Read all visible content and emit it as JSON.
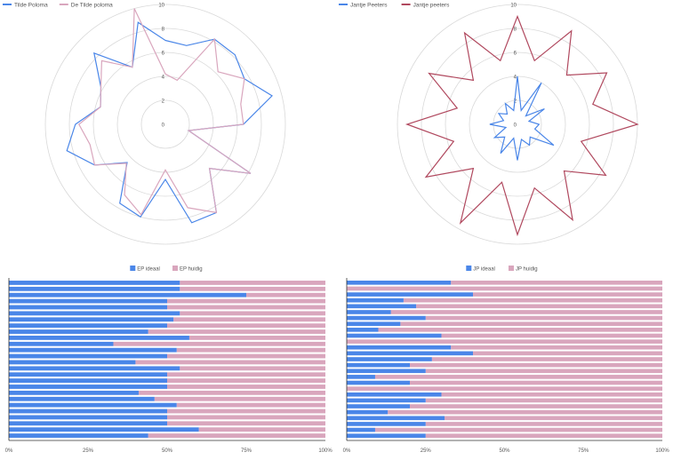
{
  "colors": {
    "blue": "#4a86e8",
    "pink": "#d9a6bd",
    "red": "#b0485e",
    "grid": "#d9d9d9",
    "axis": "#333333",
    "text": "#555555"
  },
  "chart_data": [
    {
      "type": "radar",
      "legend": [
        "Tilde Poloma",
        "De Tilde poloma"
      ],
      "rlim": [
        0,
        10
      ],
      "r_ticks": [
        "0",
        "2",
        "4",
        "6",
        "8",
        "10"
      ],
      "grid": true,
      "series": [
        {
          "name": "Tilde Poloma",
          "values": [
            7.0,
            6.8,
            8.2,
            8.2,
            7.6,
            9.2,
            6.5,
            2.0,
            8.2,
            5.2,
            8.5,
            8.5,
            4.6,
            8.0,
            7.6,
            4.5,
            6.8,
            8.5,
            7.5,
            5.6,
            6.2,
            8.4,
            5.5,
            8.8
          ]
        },
        {
          "name": "De Tilde poloma",
          "values": [
            4.2,
            3.8,
            8.2,
            6.2,
            7.6,
            6.5,
            6.5,
            2.0,
            8.2,
            5.2,
            8.5,
            7.2,
            3.8,
            7.8,
            6.8,
            4.6,
            6.8,
            6.5,
            7.2,
            5.6,
            6.2,
            7.5,
            5.5,
            10.0
          ]
        }
      ]
    },
    {
      "type": "radar",
      "legend": [
        "Jantje Peeters",
        "Jantje peeters"
      ],
      "rlim": [
        0,
        10
      ],
      "r_ticks": [
        "0",
        "2",
        "4",
        "6",
        "8",
        "10"
      ],
      "grid": true,
      "series": [
        {
          "name": "Jantje Peeters",
          "values": [
            4.0,
            1.2,
            4.0,
            1.0,
            2.6,
            1.0,
            1.8,
            1.5,
            3.5,
            1.5,
            2.0,
            1.3,
            3.0,
            1.2,
            2.8,
            1.5,
            2.2,
            1.0,
            2.3,
            1.2,
            1.8,
            1.2,
            2.0,
            1.2
          ]
        },
        {
          "name": "Jantje peeters",
          "values": [
            9.0,
            5.5,
            9.0,
            5.8,
            8.6,
            6.5,
            10.0,
            5.5,
            8.5,
            5.5,
            9.2,
            5.5,
            9.2,
            5.0,
            9.5,
            5.2,
            8.8,
            5.5,
            9.2,
            5.2,
            8.5,
            5.2,
            8.8,
            5.5
          ]
        }
      ]
    },
    {
      "type": "bar",
      "stacked": true,
      "horizontal": true,
      "legend": [
        "EP ideaal",
        "EP huidig"
      ],
      "x_ticks": [
        "0%",
        "25%",
        "50%",
        "75%",
        "100%"
      ],
      "xlim": [
        0,
        100
      ],
      "series": [
        {
          "name": "EP ideaal",
          "values": [
            54,
            54,
            75,
            50,
            50,
            54,
            52,
            50,
            44,
            57,
            33,
            53,
            50,
            40,
            54,
            50,
            50,
            50,
            41,
            46,
            53,
            50,
            50,
            50,
            60,
            44
          ]
        }
      ]
    },
    {
      "type": "bar",
      "stacked": true,
      "horizontal": true,
      "legend": [
        "JP ideaal",
        "JP huidig"
      ],
      "x_ticks": [
        "0%",
        "25%",
        "50%",
        "75%",
        "100%"
      ],
      "xlim": [
        0,
        100
      ],
      "series": [
        {
          "name": "JP ideaal",
          "values": [
            33,
            0,
            40,
            18,
            22,
            14,
            25,
            17,
            10,
            30,
            0,
            33,
            40,
            27,
            20,
            25,
            9,
            20,
            0,
            30,
            25,
            20,
            13,
            31,
            25,
            9,
            25
          ]
        }
      ]
    }
  ]
}
